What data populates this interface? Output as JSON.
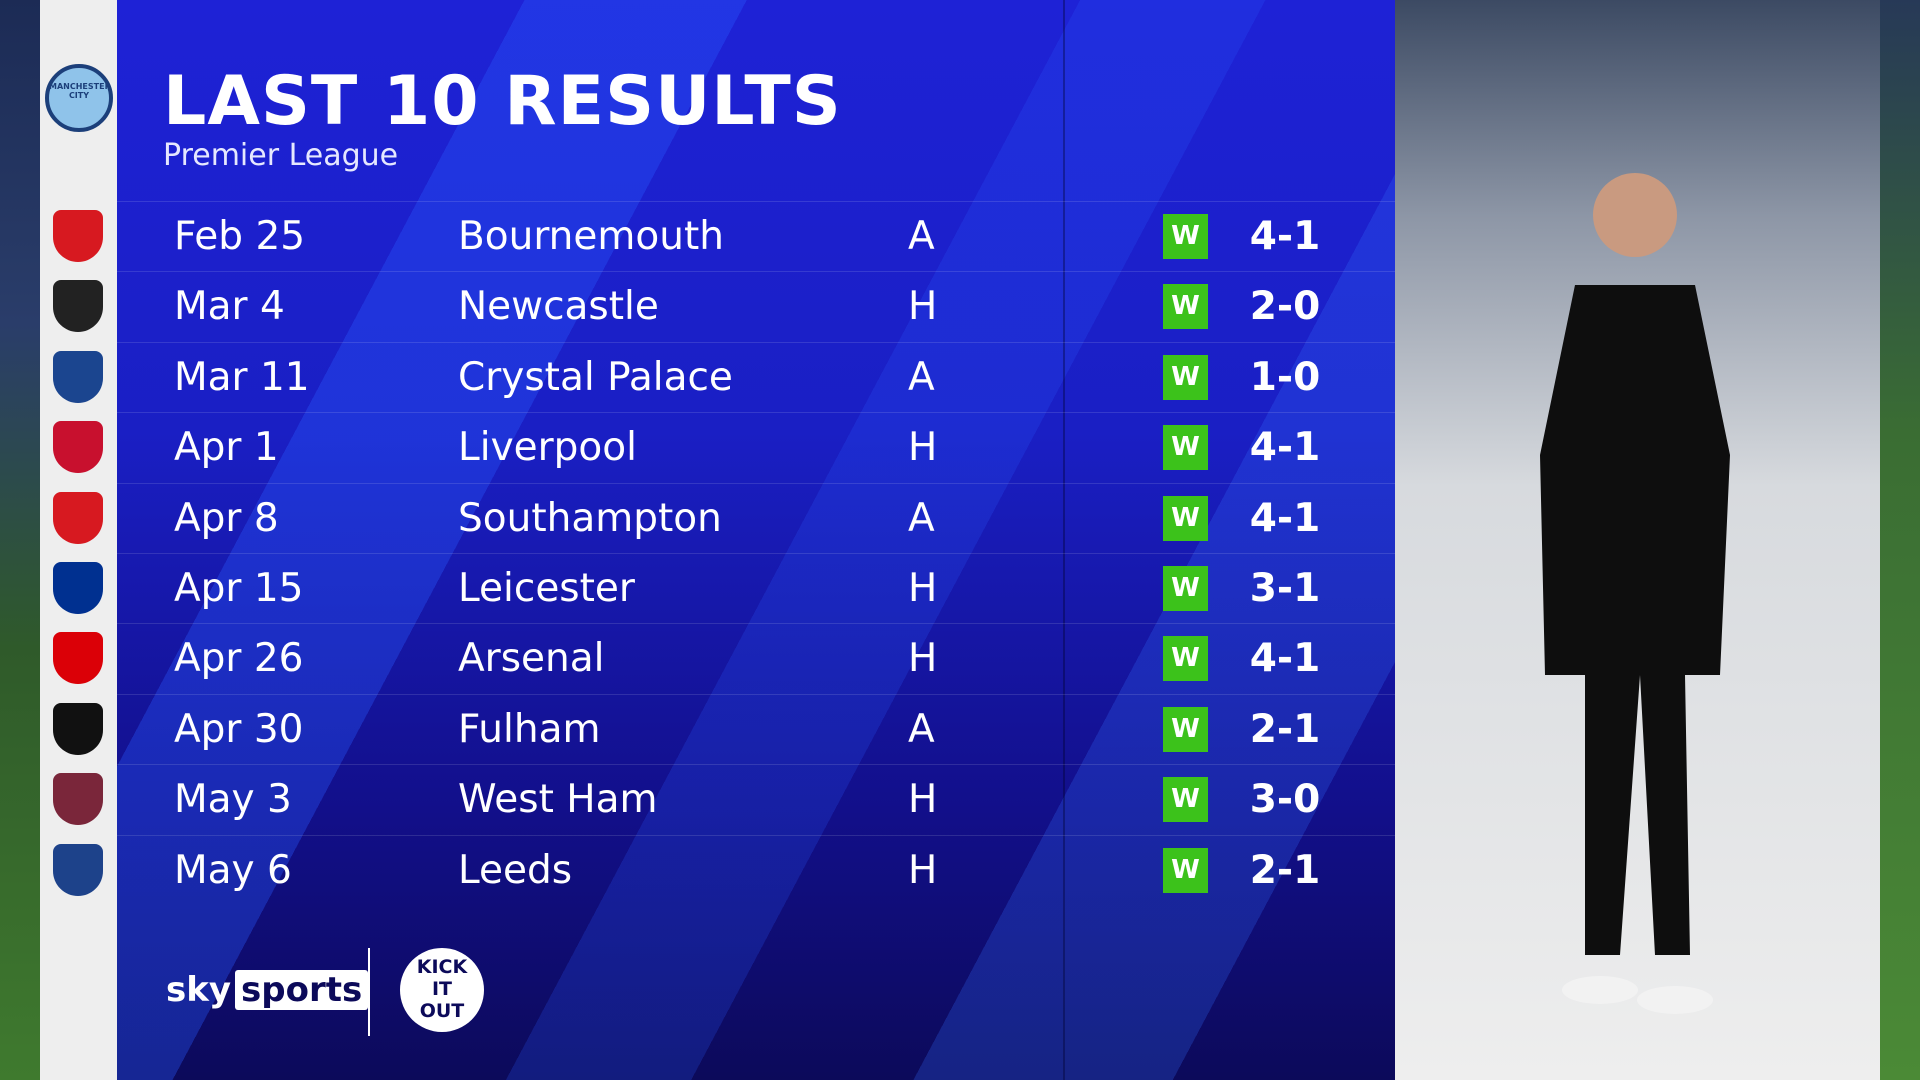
{
  "header": {
    "title": "LAST 10 RESULTS",
    "subtitle": "Premier League"
  },
  "team": {
    "name": "Manchester City",
    "crest_icon": "man-city-crest-icon"
  },
  "colors": {
    "panel": "#1a1fc4",
    "win": "#3cc21b",
    "badge_column": "#eeeeee"
  },
  "results": [
    {
      "date": "Feb 25",
      "opponent": "Bournemouth",
      "venue": "A",
      "result": "W",
      "score": "4-1",
      "crest_color": "#d71920"
    },
    {
      "date": "Mar 4",
      "opponent": "Newcastle",
      "venue": "H",
      "result": "W",
      "score": "2-0",
      "crest_color": "#222222"
    },
    {
      "date": "Mar 11",
      "opponent": "Crystal Palace",
      "venue": "A",
      "result": "W",
      "score": "1-0",
      "crest_color": "#1b458f"
    },
    {
      "date": "Apr 1",
      "opponent": "Liverpool",
      "venue": "H",
      "result": "W",
      "score": "4-1",
      "crest_color": "#c8102e"
    },
    {
      "date": "Apr 8",
      "opponent": "Southampton",
      "venue": "A",
      "result": "W",
      "score": "4-1",
      "crest_color": "#d71920"
    },
    {
      "date": "Apr 15",
      "opponent": "Leicester",
      "venue": "H",
      "result": "W",
      "score": "3-1",
      "crest_color": "#003090"
    },
    {
      "date": "Apr 26",
      "opponent": "Arsenal",
      "venue": "H",
      "result": "W",
      "score": "4-1",
      "crest_color": "#db0007"
    },
    {
      "date": "Apr 30",
      "opponent": "Fulham",
      "venue": "A",
      "result": "W",
      "score": "2-1",
      "crest_color": "#111111"
    },
    {
      "date": "May 3",
      "opponent": "West Ham",
      "venue": "H",
      "result": "W",
      "score": "3-0",
      "crest_color": "#7a263a"
    },
    {
      "date": "May 6",
      "opponent": "Leeds",
      "venue": "H",
      "result": "W",
      "score": "2-1",
      "crest_color": "#1d428a"
    }
  ],
  "footer": {
    "sky": "sky",
    "sports": "sports",
    "kick_it_out": "KICK IT OUT"
  }
}
